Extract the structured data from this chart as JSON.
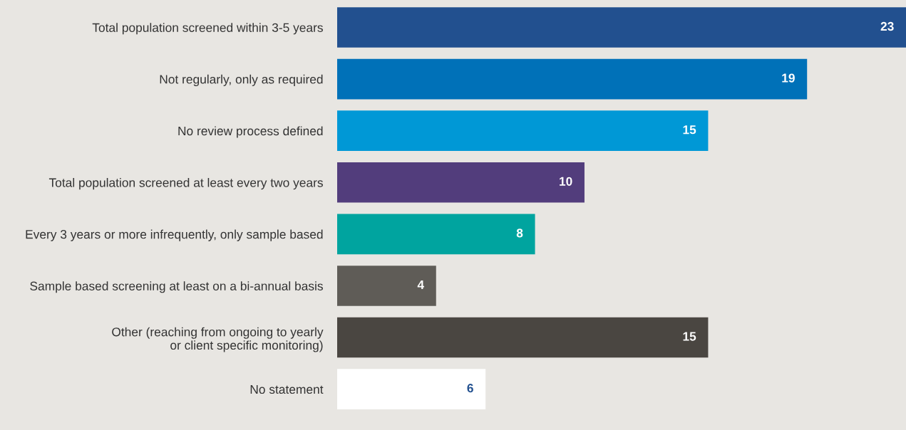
{
  "chart_data": {
    "type": "bar",
    "orientation": "horizontal",
    "categories": [
      "Total population screened within 3-5 years",
      "Not regularly, only as required",
      "No review process defined",
      "Total population screened at least every two years",
      "Every 3 years or more infrequently, only sample based",
      "Sample based screening at least on a bi-annual basis",
      "Other (reaching from ongoing to yearly\nor client specific monitoring)",
      "No statement"
    ],
    "values": [
      23,
      19,
      15,
      10,
      8,
      4,
      15,
      6
    ],
    "colors": [
      "#22508f",
      "#0071b8",
      "#0098d6",
      "#523d7c",
      "#00a49f",
      "#5f5c57",
      "#4a4641",
      "#ffffff"
    ],
    "data_labels": true,
    "grid": false,
    "legend": false,
    "tick_labels": "y"
  }
}
